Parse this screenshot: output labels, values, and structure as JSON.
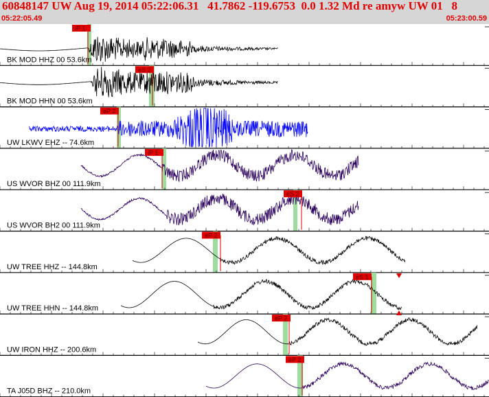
{
  "header": {
    "title": "60848147 UW Aug 19, 2014 05:22:06.31   41.7862 -119.6753  0.0 1.32 Md re amyw UW 01   8",
    "time_start": "05:22:05.49",
    "time_end": "05:23:00.59"
  },
  "traces": [
    {
      "label": "BK MOD HHZ 00 53.6km",
      "color": "#000000",
      "pick": "iP 1"
    },
    {
      "label": "BK MOD HHN 00 53.6km",
      "color": "#000000",
      "pick": "eS 2"
    },
    {
      "label": "UW LKWV EHZ -- 74.6km",
      "color": "#0000ff",
      "pick": "eP 2"
    },
    {
      "label": "US WVOR BHZ 00 111.9km",
      "color": "#2b005c",
      "pick": "iP 1"
    },
    {
      "label": "US WVOR BH2 00 111.9km",
      "color": "#2b005c",
      "pick": "eS 2"
    },
    {
      "label": "UW TREE HHZ -- 144.8km",
      "color": "#000000",
      "pick": "eP 2"
    },
    {
      "label": "UW TREE HHN -- 144.8km",
      "color": "#000000",
      "pick": "eS 1"
    },
    {
      "label": "UW IRON HHZ -- 200.6km",
      "color": "#000000",
      "pick": "eP 2"
    },
    {
      "label": "TA J05D BHZ -- 210.0km",
      "color": "#2b005c",
      "pick": "eP 2"
    }
  ],
  "colors": {
    "pick_flag": "#e00000",
    "window": "#9fdc9f",
    "header_bg": "#d6d6d6",
    "title": "#e00000"
  }
}
